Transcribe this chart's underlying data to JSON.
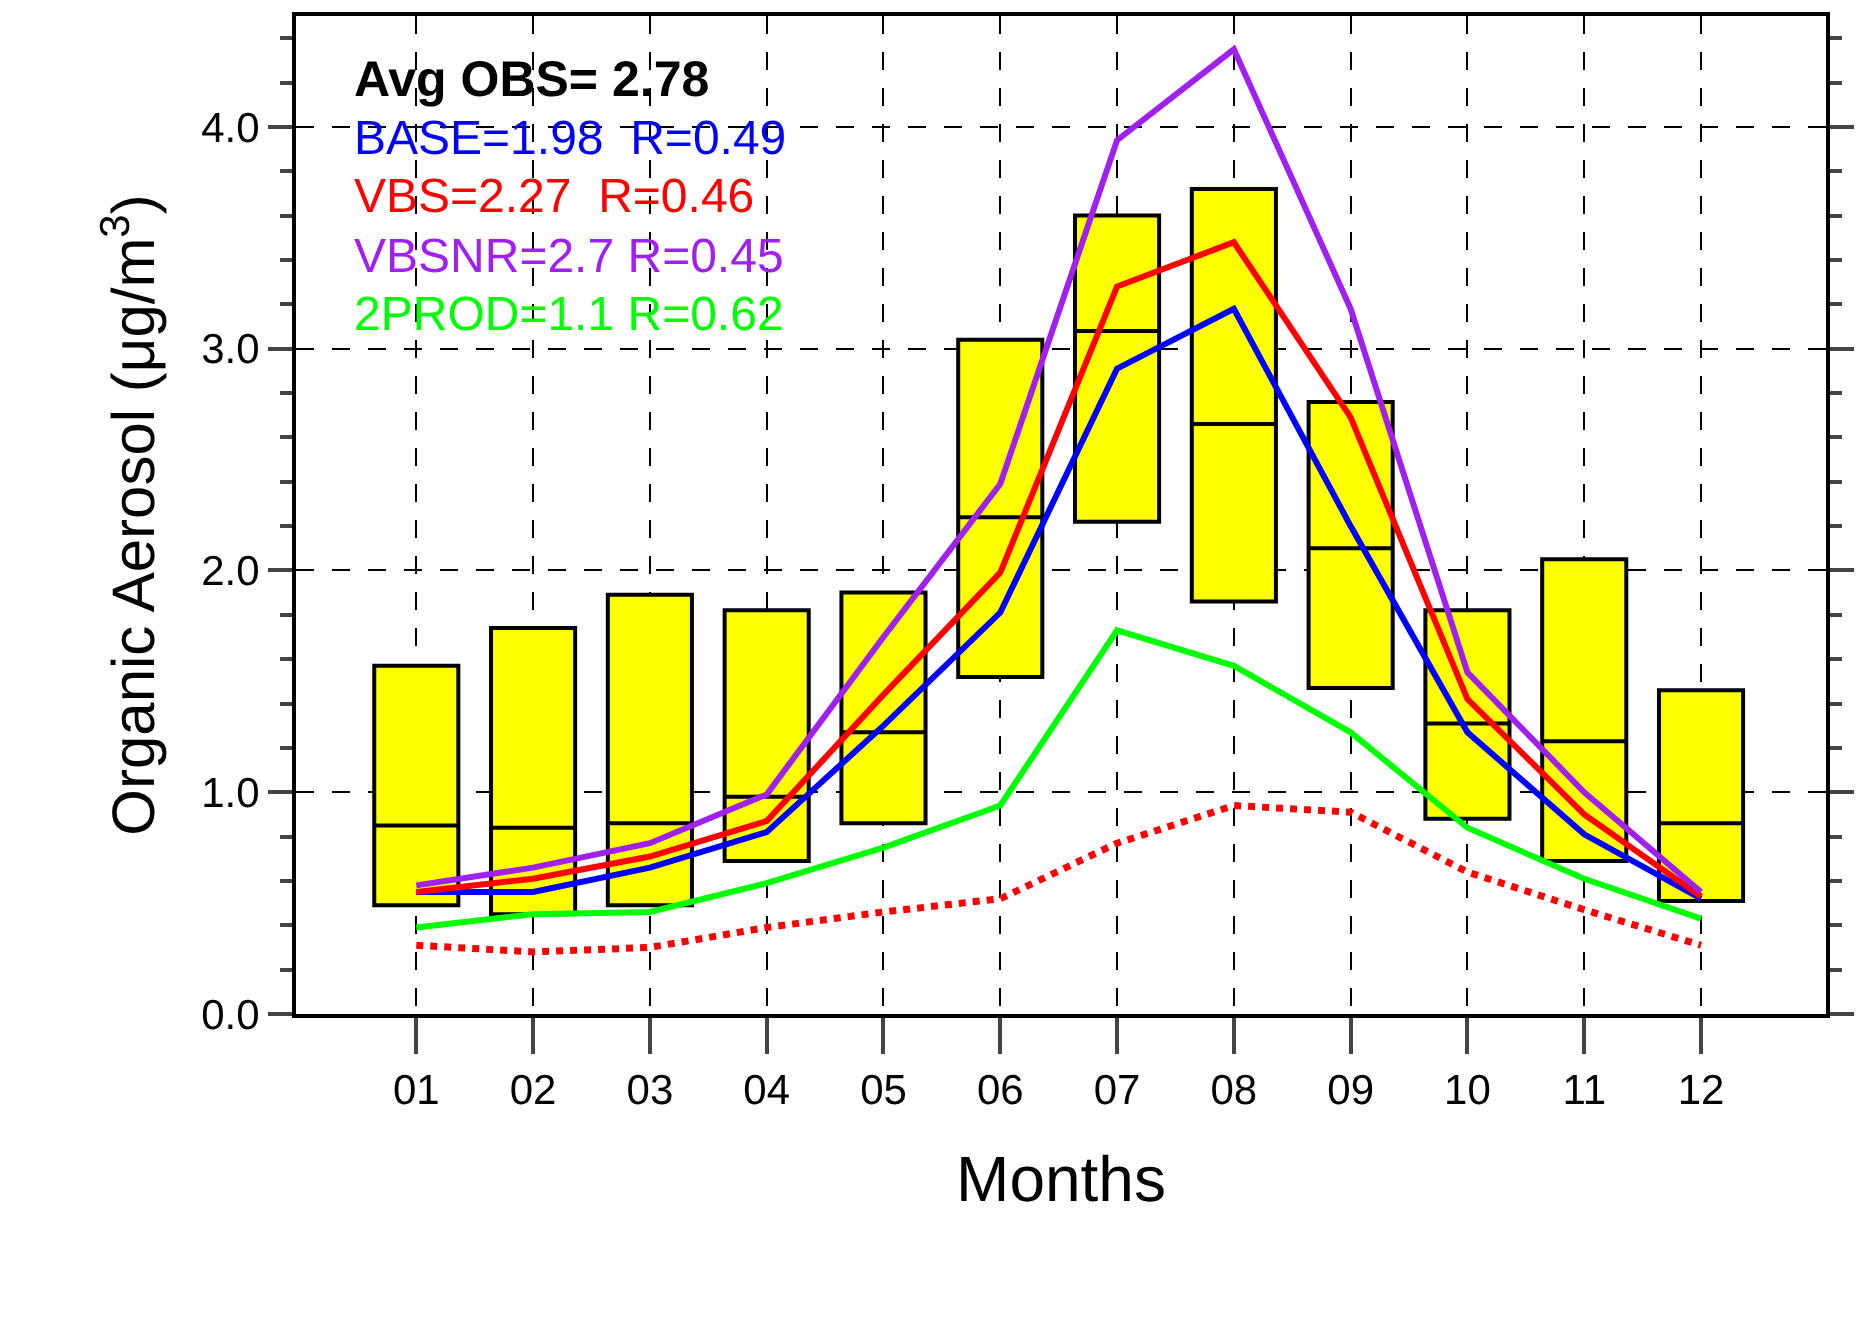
{
  "chart_data": {
    "type": "line",
    "xlabel": "Months",
    "ylabel": "Organic Aerosol (μg/m$^{3}$)",
    "categories": [
      "01",
      "02",
      "03",
      "04",
      "05",
      "06",
      "07",
      "08",
      "09",
      "10",
      "11",
      "12"
    ],
    "ylim": [
      0,
      4.5
    ],
    "yticks": [
      {
        "value": 0,
        "label": "0.0"
      },
      {
        "value": 0.2,
        "label": null
      },
      {
        "value": 0.4,
        "label": null
      },
      {
        "value": 0.6,
        "label": null
      },
      {
        "value": 0.8,
        "label": null
      },
      {
        "value": 1,
        "label": "1.0"
      },
      {
        "value": 1.2,
        "label": null
      },
      {
        "value": 1.4,
        "label": null
      },
      {
        "value": 1.6,
        "label": null
      },
      {
        "value": 1.8,
        "label": null
      },
      {
        "value": 2,
        "label": "2.0"
      },
      {
        "value": 2.2,
        "label": null
      },
      {
        "value": 2.4,
        "label": null
      },
      {
        "value": 2.6,
        "label": null
      },
      {
        "value": 2.8,
        "label": null
      },
      {
        "value": 3,
        "label": "3.0"
      },
      {
        "value": 3.2,
        "label": null
      },
      {
        "value": 3.4,
        "label": null
      },
      {
        "value": 3.6,
        "label": null
      },
      {
        "value": 3.8,
        "label": null
      },
      {
        "value": 4,
        "label": "4.0"
      },
      {
        "value": 4.2,
        "label": null
      },
      {
        "value": 4.4,
        "label": null
      }
    ],
    "grid": true,
    "marker": "none",
    "annotations": [
      "Avg OBS= 2.78",
      "BASE=1.98  R=0.49",
      "VBS=2.27  R=0.46",
      "VBSNR=2.7 R=0.45",
      "2PROD=1.1 R=0.62"
    ],
    "series": [
      {
        "type": "box",
        "color": "#ffff00",
        "boxes": [
          {
            "low": 0.49,
            "q1": 0.49,
            "median": 0.85,
            "q3": 1.57,
            "high": 1.57
          },
          {
            "low": 0.45,
            "q1": 0.45,
            "median": 0.84,
            "q3": 1.74,
            "high": 1.74
          },
          {
            "low": 0.49,
            "q1": 0.49,
            "median": 0.86,
            "q3": 1.89,
            "high": 1.89
          },
          {
            "low": 0.69,
            "q1": 0.69,
            "median": 0.98,
            "q3": 1.82,
            "high": 1.82
          },
          {
            "low": 0.86,
            "q1": 0.86,
            "median": 1.27,
            "q3": 1.9,
            "high": 1.9
          },
          {
            "low": 1.52,
            "q1": 1.52,
            "median": 2.24,
            "q3": 3.04,
            "high": 3.04
          },
          {
            "low": 2.22,
            "q1": 2.22,
            "median": 3.08,
            "q3": 3.6,
            "high": 3.6
          },
          {
            "low": 1.86,
            "q1": 1.86,
            "median": 2.66,
            "q3": 3.72,
            "high": 3.72
          },
          {
            "low": 1.47,
            "q1": 1.47,
            "median": 2.1,
            "q3": 2.76,
            "high": 2.76
          },
          {
            "low": 0.88,
            "q1": 0.88,
            "median": 1.31,
            "q3": 1.82,
            "high": 1.82
          },
          {
            "low": 0.69,
            "q1": 0.69,
            "median": 1.23,
            "q3": 2.05,
            "high": 2.05
          },
          {
            "low": 0.51,
            "q1": 0.51,
            "median": 0.86,
            "q3": 1.46,
            "high": 1.46
          }
        ]
      },
      {
        "color": "#0000ff",
        "line_style": "solid",
        "values": [
          0.55,
          0.55,
          0.66,
          0.82,
          1.3,
          1.81,
          2.91,
          3.18,
          2.2,
          1.27,
          0.81,
          0.52
        ]
      },
      {
        "color": "#ff0000",
        "line_style": "solid",
        "values": [
          0.55,
          0.61,
          0.71,
          0.87,
          1.44,
          1.99,
          3.28,
          3.48,
          2.69,
          1.42,
          0.9,
          0.53
        ]
      },
      {
        "color": "#a020f0",
        "line_style": "solid",
        "values": [
          0.58,
          0.66,
          0.77,
          0.99,
          1.7,
          2.39,
          3.94,
          4.35,
          3.18,
          1.54,
          1.0,
          0.55
        ]
      },
      {
        "color": "#00ff00",
        "line_style": "solid",
        "values": [
          0.39,
          0.45,
          0.46,
          0.59,
          0.75,
          0.94,
          1.73,
          1.57,
          1.27,
          0.84,
          0.61,
          0.43
        ]
      },
      {
        "color": "#ff0000",
        "line_style": "dotted",
        "values": [
          0.31,
          0.28,
          0.3,
          0.39,
          0.46,
          0.52,
          0.77,
          0.94,
          0.91,
          0.64,
          0.47,
          0.31
        ]
      }
    ]
  }
}
